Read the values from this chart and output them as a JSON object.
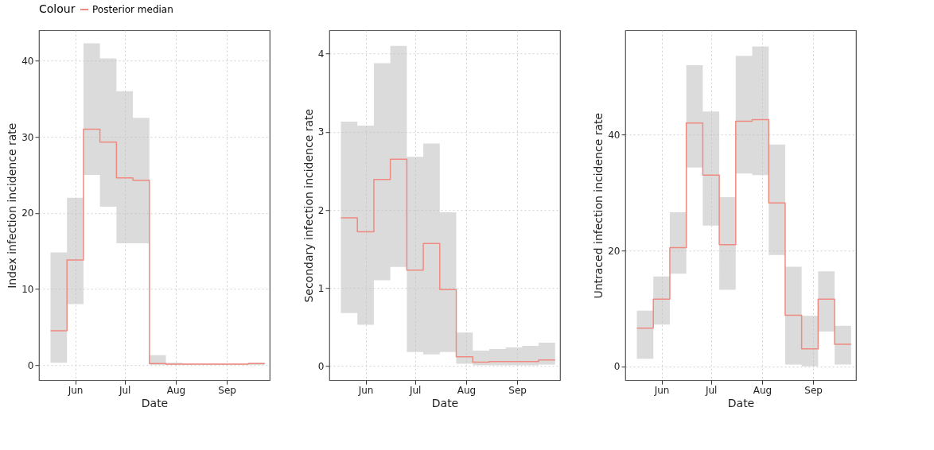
{
  "chart_data": [
    {
      "type": "step",
      "xlabel": "Date",
      "ylabel": "Index infection incidence rate",
      "legend_title": "Colour",
      "legend": "top",
      "x": [
        "--05-17",
        "--05-27",
        "--06-06",
        "--06-16",
        "--06-26",
        "--07-06",
        "--07-16",
        "--07-26",
        "--08-05",
        "--08-15",
        "--08-25",
        "--09-04",
        "--09-14",
        "--09-24"
      ],
      "xlim": [
        "--05-10",
        "--09-27"
      ],
      "xticks": [
        {
          "value": "--06-01",
          "label": "Jun"
        },
        {
          "value": "--07-01",
          "label": "Jul"
        },
        {
          "value": "--08-01",
          "label": "Aug"
        },
        {
          "value": "--09-01",
          "label": "Sep"
        }
      ],
      "ylim": [
        -2,
        44
      ],
      "yticks": [
        0,
        10,
        20,
        30,
        40
      ],
      "grid": true,
      "series": [
        {
          "name": "Posterior median",
          "color": "#f08a80",
          "values": [
            4.5,
            13.8,
            31,
            29.3,
            24.6,
            24.3,
            0.2,
            0.1,
            0.1,
            0.1,
            0.1,
            0.1,
            0.2,
            0.2
          ],
          "lower": [
            0.3,
            8,
            25,
            20.8,
            16,
            16,
            0,
            0,
            0,
            0,
            0,
            0,
            0,
            0
          ],
          "upper": [
            14.8,
            22,
            42.3,
            40.3,
            36,
            32.5,
            1.3,
            0.3,
            0.2,
            0.2,
            0.2,
            0.2,
            0.3,
            0.3
          ]
        }
      ]
    },
    {
      "type": "step",
      "xlabel": "Date",
      "ylabel": "Secondary infection incidence rate",
      "legend": "top",
      "x": [
        "--05-17",
        "--05-27",
        "--06-06",
        "--06-16",
        "--06-26",
        "--07-06",
        "--07-16",
        "--07-26",
        "--08-05",
        "--08-15",
        "--08-25",
        "--09-04",
        "--09-14",
        "--09-24"
      ],
      "xlim": [
        "--05-10",
        "--09-27"
      ],
      "xticks": [
        {
          "value": "--06-01",
          "label": "Jun"
        },
        {
          "value": "--07-01",
          "label": "Jul"
        },
        {
          "value": "--08-01",
          "label": "Aug"
        },
        {
          "value": "--09-01",
          "label": "Sep"
        }
      ],
      "ylim": [
        -0.18,
        4.3
      ],
      "yticks": [
        0,
        1,
        2,
        3,
        4
      ],
      "grid": true,
      "series": [
        {
          "name": "Posterior median",
          "color": "#f08a80",
          "values": [
            1.9,
            1.72,
            2.39,
            2.65,
            1.23,
            1.57,
            0.98,
            0.12,
            0.05,
            0.06,
            0.06,
            0.06,
            0.08,
            0.08
          ],
          "lower": [
            0.68,
            0.53,
            1.1,
            1.27,
            0.18,
            0.15,
            0.18,
            0.03,
            0.01,
            0.01,
            0.01,
            0.01,
            0.02,
            0.02
          ],
          "upper": [
            3.13,
            3.08,
            3.88,
            4.1,
            2.68,
            2.85,
            1.97,
            0.43,
            0.2,
            0.22,
            0.24,
            0.26,
            0.3,
            0.3
          ]
        }
      ]
    },
    {
      "type": "step",
      "xlabel": "Date",
      "ylabel": "Untraced infection incidence rate",
      "legend": "top",
      "x": [
        "--05-17",
        "--05-27",
        "--06-06",
        "--06-16",
        "--06-26",
        "--07-06",
        "--07-16",
        "--07-26",
        "--08-05",
        "--08-15",
        "--08-25",
        "--09-04",
        "--09-14",
        "--09-24"
      ],
      "xlim": [
        "--05-10",
        "--09-27"
      ],
      "xticks": [
        {
          "value": "--06-01",
          "label": "Jun"
        },
        {
          "value": "--07-01",
          "label": "Jul"
        },
        {
          "value": "--08-01",
          "label": "Aug"
        },
        {
          "value": "--09-01",
          "label": "Sep"
        }
      ],
      "ylim": [
        -2.4,
        58
      ],
      "yticks": [
        0,
        20,
        40
      ],
      "grid": true,
      "series": [
        {
          "name": "Posterior median",
          "color": "#f08a80",
          "values": [
            6.6,
            11.6,
            20.5,
            42,
            33,
            21,
            42.3,
            42.6,
            28.2,
            8.8,
            3,
            11.6,
            3.8,
            3.8
          ],
          "lower": [
            1.3,
            7.2,
            16,
            34.3,
            24.3,
            13.2,
            33.3,
            33,
            19.2,
            0.3,
            0,
            6,
            0.3,
            0.3
          ],
          "upper": [
            9.6,
            15.5,
            26.6,
            52,
            44,
            29.2,
            53.6,
            55.2,
            38.3,
            17.2,
            8.7,
            16.4,
            7,
            7
          ]
        }
      ]
    }
  ]
}
